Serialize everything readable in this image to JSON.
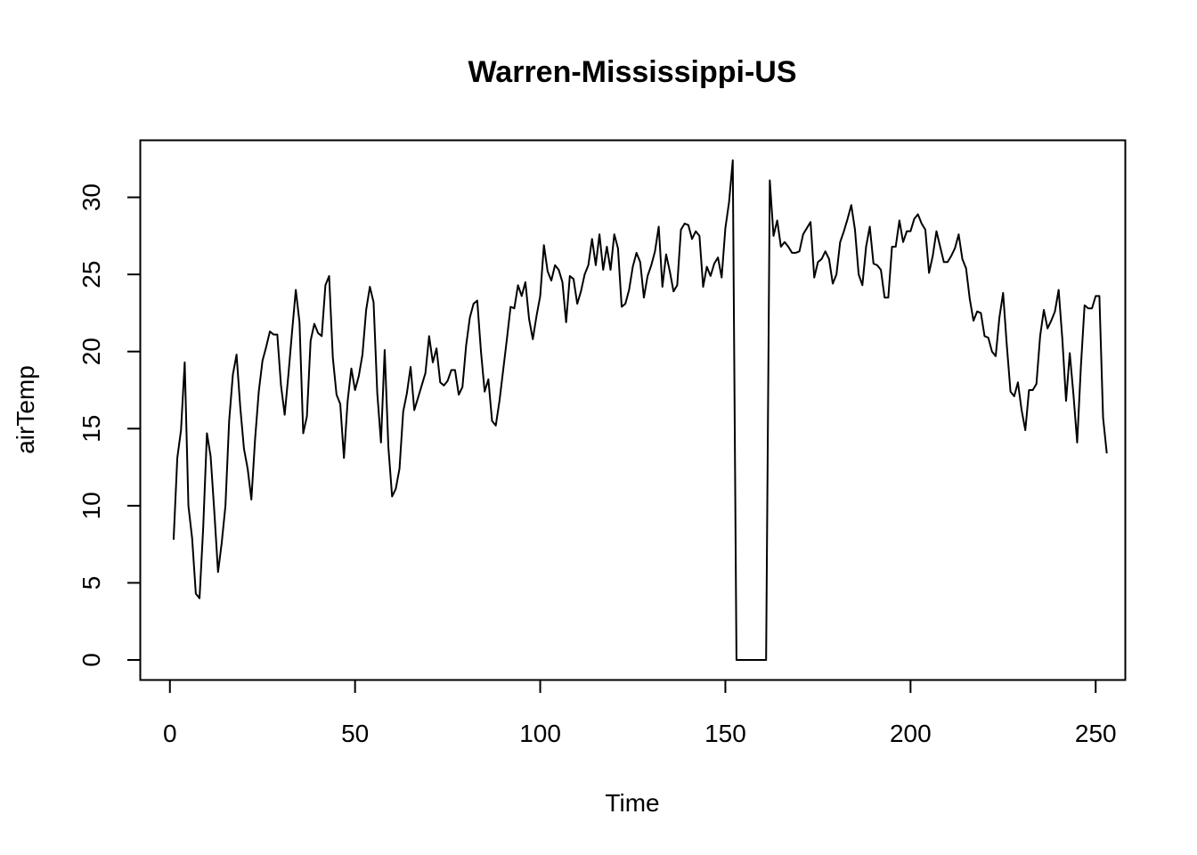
{
  "chart_data": {
    "type": "line",
    "title": "Warren-Mississippi-US",
    "xlabel": "Time",
    "ylabel": "airTemp",
    "xlim": [
      -8,
      258
    ],
    "ylim": [
      -1.3,
      33.7
    ],
    "x_ticks": [
      0,
      50,
      100,
      150,
      200,
      250
    ],
    "y_ticks": [
      0,
      5,
      10,
      15,
      20,
      25,
      30
    ],
    "grid": false,
    "series": [
      {
        "color": "#000000",
        "x_start": 1,
        "values": [
          7.8,
          13.1,
          14.9,
          19.3,
          10.0,
          7.9,
          4.3,
          4.0,
          8.6,
          14.7,
          13.2,
          9.6,
          5.7,
          7.6,
          10.0,
          15.5,
          18.5,
          19.8,
          16.4,
          13.7,
          12.4,
          10.4,
          14.3,
          17.4,
          19.4,
          20.3,
          21.3,
          21.1,
          21.1,
          17.8,
          15.9,
          18.5,
          21.3,
          24.0,
          21.9,
          14.7,
          15.8,
          20.7,
          21.8,
          21.2,
          21.0,
          24.3,
          24.9,
          19.6,
          17.2,
          16.6,
          13.1,
          16.8,
          18.9,
          17.5,
          18.4,
          19.8,
          22.7,
          24.2,
          23.2,
          17.3,
          14.1,
          20.1,
          13.8,
          10.6,
          11.1,
          12.4,
          16.1,
          17.3,
          19.0,
          16.2,
          17.0,
          17.8,
          18.6,
          21.0,
          19.3,
          20.2,
          18.0,
          17.8,
          18.1,
          18.8,
          18.8,
          17.2,
          17.7,
          20.4,
          22.2,
          23.1,
          23.3,
          20.0,
          17.4,
          18.2,
          15.5,
          15.2,
          16.8,
          18.8,
          20.8,
          22.9,
          22.8,
          24.3,
          23.6,
          24.5,
          22.1,
          20.8,
          22.3,
          23.6,
          26.9,
          25.2,
          24.6,
          25.6,
          25.3,
          24.5,
          21.9,
          24.9,
          24.7,
          23.1,
          23.9,
          25.0,
          25.6,
          27.3,
          25.6,
          27.6,
          25.3,
          26.8,
          25.3,
          27.6,
          26.7,
          22.9,
          23.1,
          24.0,
          25.5,
          26.4,
          25.8,
          23.5,
          24.9,
          25.6,
          26.5,
          28.1,
          24.2,
          26.3,
          25.2,
          23.9,
          24.3,
          27.9,
          28.3,
          28.2,
          27.3,
          27.8,
          27.5,
          24.2,
          25.5,
          24.9,
          25.7,
          26.1,
          24.8,
          28.0,
          29.7,
          32.4,
          0.0,
          0.0,
          0.0,
          0.0,
          0.0,
          0.0,
          0.0,
          0.0,
          0.0,
          31.1,
          27.5,
          28.5,
          26.8,
          27.1,
          26.8,
          26.4,
          26.4,
          26.5,
          27.6,
          28.0,
          28.4,
          24.8,
          25.8,
          26.0,
          26.5,
          26.0,
          24.4,
          25.0,
          27.1,
          27.8,
          28.6,
          29.5,
          27.9,
          25.0,
          24.3,
          26.8,
          28.1,
          25.7,
          25.6,
          25.3,
          23.5,
          23.5,
          26.8,
          26.8,
          28.5,
          27.1,
          27.8,
          27.8,
          28.6,
          28.9,
          28.3,
          27.9,
          25.1,
          26.2,
          27.8,
          26.8,
          25.8,
          25.8,
          26.2,
          26.7,
          27.6,
          26.0,
          25.4,
          23.4,
          22.0,
          22.6,
          22.5,
          21.0,
          20.9,
          20.0,
          19.7,
          22.2,
          23.8,
          20.4,
          17.4,
          17.1,
          18.0,
          16.2,
          14.9,
          17.5,
          17.5,
          17.9,
          21.0,
          22.7,
          21.5,
          22.0,
          22.6,
          24.0,
          20.8,
          16.8,
          19.9,
          17.2,
          14.1,
          19.0,
          23.0,
          22.8,
          22.8,
          23.6,
          23.6,
          15.7,
          13.4
        ]
      }
    ]
  }
}
